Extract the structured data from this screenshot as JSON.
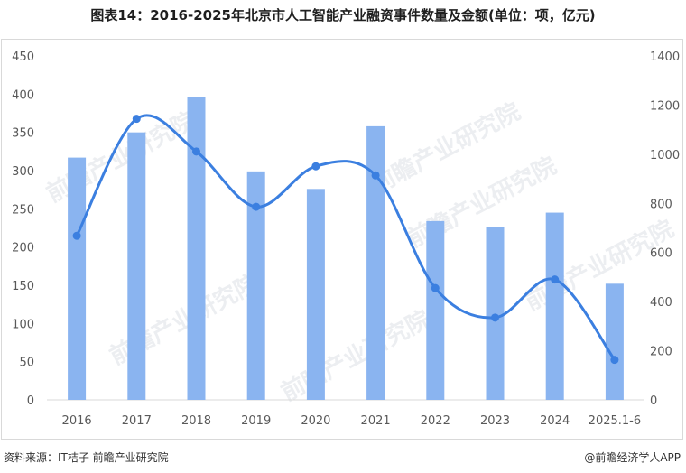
{
  "title": "图表14：2016-2025年北京市人工智能产业融资事件数量及金额(单位：项，亿元)",
  "source": "资料来源：IT桔子 前瞻产业研究院",
  "brand": "@前瞻经济学人APP",
  "watermarks": [
    "前瞻产业研究院",
    "前瞻产业研究院",
    "前瞻产业研究院",
    "前瞻产业研究院",
    "前瞻产业研究院",
    "前瞻产业研究院"
  ],
  "colors": {
    "bar": "#8ab4f0",
    "line": "#3b7fe0"
  },
  "chart_data": {
    "type": "bar+line",
    "categories": [
      "2016",
      "2017",
      "2018",
      "2019",
      "2020",
      "2021",
      "2022",
      "2023",
      "2024",
      "2025.1-6"
    ],
    "series": [
      {
        "type": "bar",
        "axis": "left",
        "values": [
          317,
          350,
          396,
          299,
          276,
          358,
          234,
          226,
          245,
          152
        ]
      },
      {
        "type": "line",
        "axis": "right",
        "smooth": true,
        "values": [
          668,
          1144,
          1011,
          786,
          951,
          914,
          455,
          335,
          490,
          163
        ]
      }
    ],
    "left_axis": {
      "min": 0,
      "max": 450,
      "ticks": [
        "0",
        "50",
        "100",
        "150",
        "200",
        "250",
        "300",
        "350",
        "400",
        "450"
      ]
    },
    "right_axis": {
      "min": 0,
      "max": 1400,
      "ticks": [
        "0",
        "200",
        "400",
        "600",
        "800",
        "1000",
        "1200",
        "1400"
      ]
    },
    "grid": false,
    "legend": "none"
  }
}
